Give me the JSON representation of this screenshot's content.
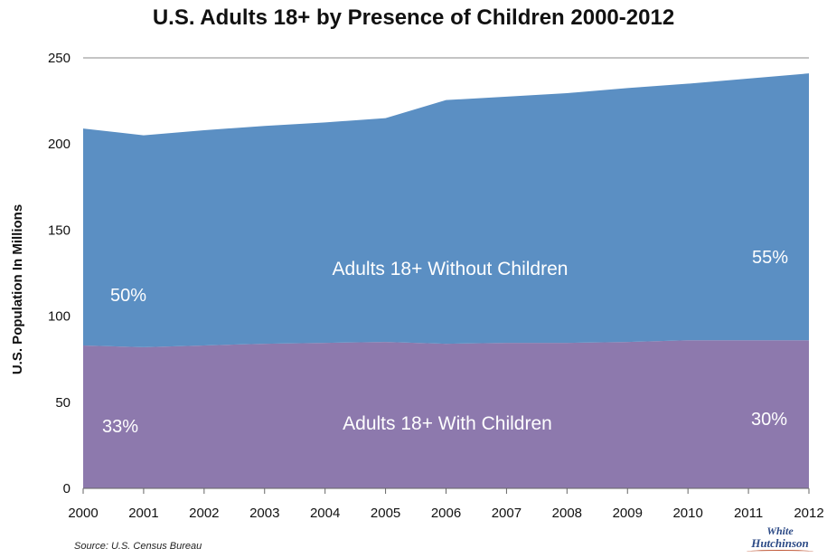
{
  "chart_data": {
    "type": "area",
    "title": "U.S. Adults 18+ by Presence of Children 2000-2012",
    "ylabel": "U.S. Population In Millions",
    "xlabel": "",
    "x": [
      "2000",
      "2001",
      "2002",
      "2003",
      "2004",
      "2005",
      "2006",
      "2007",
      "2008",
      "2009",
      "2010",
      "2011",
      "2012"
    ],
    "ylim": [
      0,
      250
    ],
    "yticks": [
      "0",
      "50",
      "100",
      "150",
      "200",
      "250"
    ],
    "grid": true,
    "stacked": true,
    "series": [
      {
        "name": "Adults 18+ With Children",
        "color": "#8d79ad",
        "values": [
          83,
          82,
          83,
          84,
          84.5,
          85,
          84,
          84.5,
          84.5,
          85,
          86,
          86,
          86
        ]
      },
      {
        "name": "Adults 18+ Without Children",
        "color": "#5b8fc3",
        "values": [
          126,
          123,
          125,
          126.5,
          128,
          130,
          141.5,
          143,
          145,
          147.5,
          149,
          152,
          155
        ]
      }
    ],
    "annotations": {
      "without_start_pct": "50%",
      "without_end_pct": "55%",
      "with_start_pct": "33%",
      "with_end_pct": "30%"
    }
  },
  "source": "Source: U.S. Census Bureau",
  "logo": {
    "line1": "White",
    "line2": "Hutchinson"
  }
}
